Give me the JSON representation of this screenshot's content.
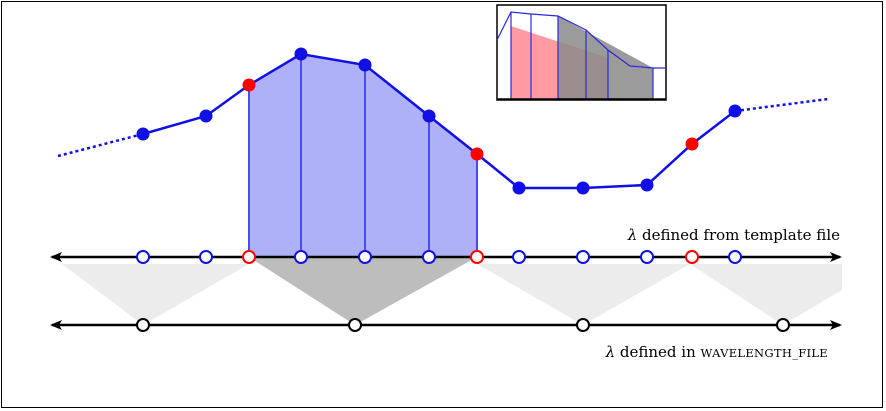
{
  "diagram": {
    "template_axis_label": {
      "symbol": "λ",
      "text": "defined from template file"
    },
    "wavelength_axis_label": {
      "symbol": "λ",
      "text": "defined in",
      "keyword": "WAVELENGTH_FILE"
    }
  },
  "colors": {
    "curve": "#1010e6",
    "curve_fill": "#aeb0f8",
    "highlight_point": "#ff0000",
    "bin_shade_light": "#ececec",
    "bin_shade_dark": "#bdbdbd",
    "inset_red": "#ff9aa2",
    "inset_gray": "#8a8a8a"
  },
  "icons": {
    "template_marker": "open-circle-blue",
    "boundary_marker": "open-circle-red",
    "wavelength_marker": "open-circle-black"
  }
}
